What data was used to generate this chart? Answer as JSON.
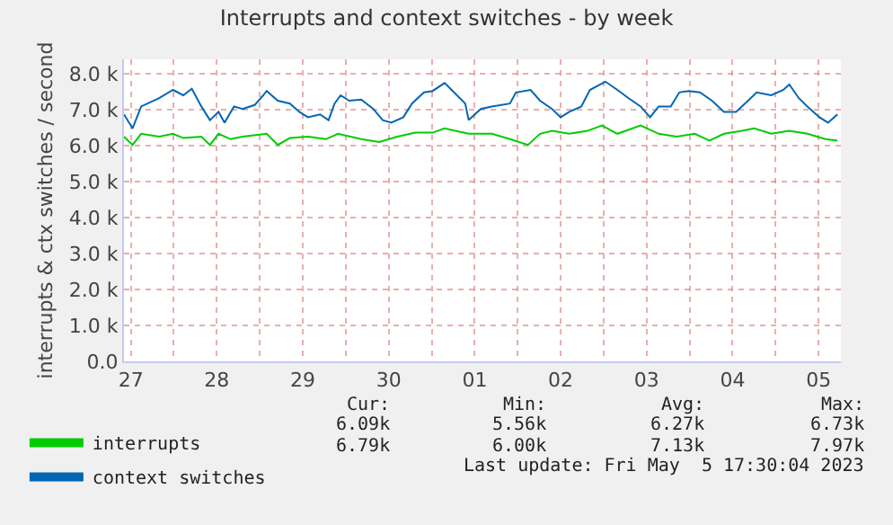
{
  "chart_data": {
    "type": "line",
    "title": "Interrupts and context switches - by week",
    "ylabel": "interrupts & ctx switches / second",
    "series": [
      {
        "name": "interrupts",
        "color": "#00cc00",
        "x": [
          "2023-04-27T10:05",
          "2023-04-27T12:29",
          "2023-04-27T14:53",
          "2023-04-27T19:55",
          "2023-04-27T23:46",
          "2023-04-28T02:38",
          "2023-04-28T07:41",
          "2023-04-28T10:05",
          "2023-04-28T12:29",
          "2023-04-28T15:50",
          "2023-04-28T19:12",
          "2023-04-29T01:55",
          "2023-04-29T05:02",
          "2023-04-29T08:24",
          "2023-04-29T13:26",
          "2023-04-29T18:29",
          "2023-04-29T21:50",
          "2023-04-30T04:19",
          "2023-04-30T09:22",
          "2023-04-30T14:24",
          "2023-04-30T19:26",
          "2023-05-01T00:14",
          "2023-05-01T03:36",
          "2023-05-01T10:19",
          "2023-05-01T16:48",
          "2023-05-01T21:50",
          "2023-05-02T02:53",
          "2023-05-02T06:14",
          "2023-05-02T09:36",
          "2023-05-02T14:24",
          "2023-05-02T19:26",
          "2023-05-02T23:31",
          "2023-05-03T03:50",
          "2023-05-03T10:19",
          "2023-05-03T15:22",
          "2023-05-03T20:24",
          "2023-05-04T01:26",
          "2023-05-04T05:31",
          "2023-05-04T09:36",
          "2023-05-04T14:38",
          "2023-05-04T18:00",
          "2023-05-04T22:48",
          "2023-05-05T03:50",
          "2023-05-05T08:53",
          "2023-05-05T13:55",
          "2023-05-05T17:17"
        ],
        "values": [
          6.25,
          6.02,
          6.33,
          6.25,
          6.33,
          6.21,
          6.25,
          6.02,
          6.33,
          6.18,
          6.25,
          6.33,
          6.02,
          6.21,
          6.25,
          6.18,
          6.33,
          6.18,
          6.1,
          6.25,
          6.36,
          6.36,
          6.48,
          6.33,
          6.33,
          6.18,
          6.02,
          6.33,
          6.41,
          6.33,
          6.41,
          6.56,
          6.33,
          6.56,
          6.33,
          6.25,
          6.33,
          6.14,
          6.33,
          6.41,
          6.48,
          6.33,
          6.41,
          6.33,
          6.18,
          6.14
        ]
      },
      {
        "name": "context switches",
        "color": "#0066b3",
        "x": [
          "2023-04-27T10:05",
          "2023-04-27T12:29",
          "2023-04-27T14:53",
          "2023-04-27T19:55",
          "2023-04-27T23:46",
          "2023-04-28T02:38",
          "2023-04-28T05:02",
          "2023-04-28T07:41",
          "2023-04-28T10:05",
          "2023-04-28T12:29",
          "2023-04-28T14:10",
          "2023-04-28T16:48",
          "2023-04-28T19:12",
          "2023-04-28T22:34",
          "2023-04-29T00:58",
          "2023-04-29T01:55",
          "2023-04-29T05:02",
          "2023-04-29T08:24",
          "2023-04-29T11:02",
          "2023-04-29T13:26",
          "2023-04-29T16:48",
          "2023-04-29T19:12",
          "2023-04-29T20:53",
          "2023-04-29T22:34",
          "2023-04-30T00:58",
          "2023-04-30T04:19",
          "2023-04-30T07:41",
          "2023-04-30T10:19",
          "2023-04-30T12:43",
          "2023-04-30T16:05",
          "2023-04-30T18:29",
          "2023-04-30T21:50",
          "2023-05-01T00:14",
          "2023-05-01T03:36",
          "2023-05-01T06:14",
          "2023-05-01T09:22",
          "2023-05-01T10:19",
          "2023-05-01T13:41",
          "2023-05-01T16:48",
          "2023-05-01T21:50",
          "2023-05-01T23:31",
          "2023-05-02T03:36",
          "2023-05-02T06:14",
          "2023-05-02T09:36",
          "2023-05-02T12:00",
          "2023-05-02T14:24",
          "2023-05-02T17:46",
          "2023-05-02T20:10",
          "2023-05-03T00:29",
          "2023-05-03T03:50",
          "2023-05-03T06:58",
          "2023-05-03T10:19",
          "2023-05-03T12:58",
          "2023-05-03T15:22",
          "2023-05-03T18:43",
          "2023-05-03T21:07",
          "2023-05-03T23:46",
          "2023-05-04T02:53",
          "2023-05-04T06:14",
          "2023-05-04T09:36",
          "2023-05-04T12:58",
          "2023-05-04T16:19",
          "2023-05-04T18:43",
          "2023-05-04T22:48",
          "2023-05-05T02:10",
          "2023-05-05T03:50",
          "2023-05-05T06:29",
          "2023-05-05T08:53",
          "2023-05-05T12:14",
          "2023-05-05T14:38",
          "2023-05-05T17:17"
        ],
        "values": [
          6.87,
          6.48,
          7.09,
          7.32,
          7.55,
          7.4,
          7.58,
          7.09,
          6.71,
          6.94,
          6.64,
          7.09,
          7.02,
          7.13,
          7.4,
          7.52,
          7.25,
          7.17,
          6.94,
          6.79,
          6.87,
          6.71,
          7.17,
          7.4,
          7.25,
          7.28,
          7.02,
          6.71,
          6.64,
          6.79,
          7.17,
          7.48,
          7.52,
          7.74,
          7.48,
          7.17,
          6.71,
          7.02,
          7.09,
          7.17,
          7.48,
          7.55,
          7.25,
          7.02,
          6.79,
          6.94,
          7.09,
          7.55,
          7.78,
          7.55,
          7.32,
          7.09,
          6.79,
          7.09,
          7.09,
          7.48,
          7.52,
          7.48,
          7.25,
          6.94,
          6.94,
          7.25,
          7.48,
          7.4,
          7.55,
          7.7,
          7.32,
          7.09,
          6.79,
          6.64,
          6.87
        ]
      }
    ],
    "xlim": [
      "2023-04-27T10:05",
      "2023-05-05T18:14"
    ],
    "xticks": [
      {
        "value": "2023-04-27T12:00",
        "label": "27"
      },
      {
        "value": "2023-04-28",
        "label": null
      },
      {
        "value": "2023-04-28T12:00",
        "label": "28"
      },
      {
        "value": "2023-04-29",
        "label": null
      },
      {
        "value": "2023-04-29T12:00",
        "label": "29"
      },
      {
        "value": "2023-04-30",
        "label": null
      },
      {
        "value": "2023-04-30T12:00",
        "label": "30"
      },
      {
        "value": "2023-05-01",
        "label": null
      },
      {
        "value": "2023-05-01T12:00",
        "label": "01"
      },
      {
        "value": "2023-05-02",
        "label": null
      },
      {
        "value": "2023-05-02T12:00",
        "label": "02"
      },
      {
        "value": "2023-05-03",
        "label": null
      },
      {
        "value": "2023-05-03T12:00",
        "label": "03"
      },
      {
        "value": "2023-05-04",
        "label": null
      },
      {
        "value": "2023-05-04T12:00",
        "label": "04"
      },
      {
        "value": "2023-05-05",
        "label": null
      },
      {
        "value": "2023-05-05T12:00",
        "label": "05"
      }
    ],
    "ylim": [
      0,
      8.4
    ],
    "yticks": [
      {
        "value": 0,
        "label": "0.0"
      },
      {
        "value": 1,
        "label": "1.0 k"
      },
      {
        "value": 2,
        "label": "2.0 k"
      },
      {
        "value": 3,
        "label": "3.0 k"
      },
      {
        "value": 4,
        "label": "4.0 k"
      },
      {
        "value": 5,
        "label": "5.0 k"
      },
      {
        "value": 6,
        "label": "6.0 k"
      },
      {
        "value": 7,
        "label": "7.0 k"
      },
      {
        "value": 8,
        "label": "8.0 k"
      }
    ],
    "grid": true,
    "legend": "bottom left",
    "marker": "none",
    "line_style": "solid",
    "annotations": [
      "Cur:",
      "Min:",
      "Avg:",
      "Max:",
      "6.09k",
      "5.56k",
      "6.27k",
      "6.73k",
      "6.79k",
      "6.00k",
      "7.13k",
      "7.97k",
      "Last update: Fri May  5 17:30:04 2023"
    ]
  }
}
